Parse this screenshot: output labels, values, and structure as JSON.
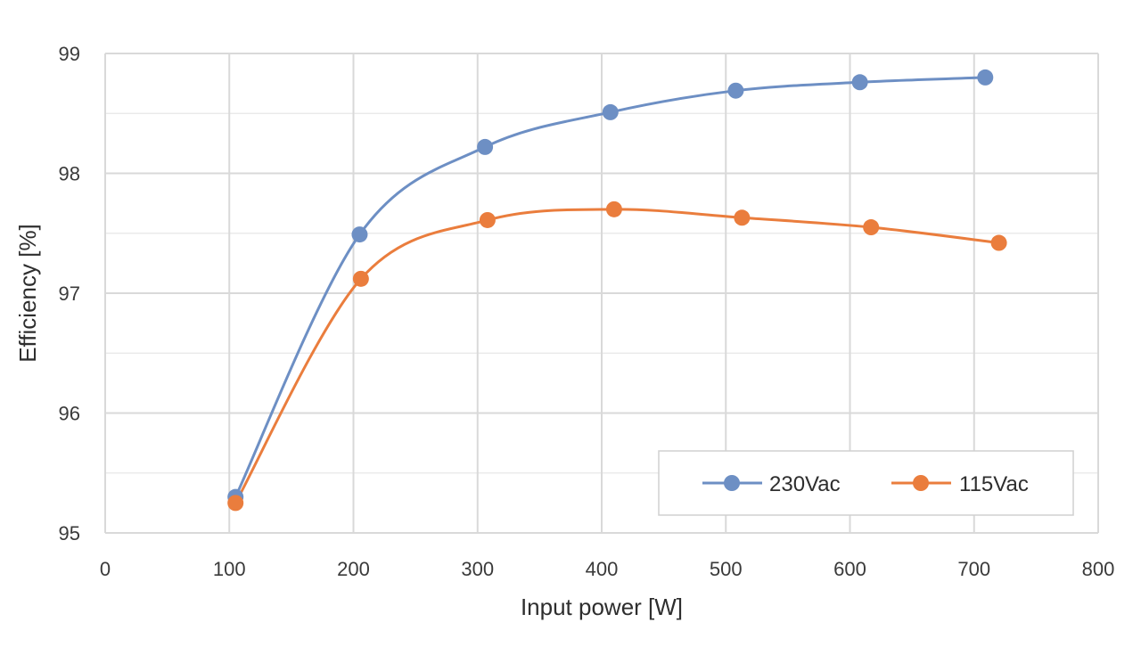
{
  "chart_data": {
    "type": "line",
    "title": "",
    "xlabel": "Input power [W]",
    "ylabel": "Efficiency [%]",
    "xlim": [
      0,
      800
    ],
    "ylim": [
      95,
      99
    ],
    "xticks": [
      0,
      100,
      200,
      300,
      400,
      500,
      600,
      700,
      800
    ],
    "yticks": [
      95,
      96,
      97,
      98,
      99
    ],
    "xtick_labels": [
      "0",
      "100",
      "200",
      "300",
      "400",
      "500",
      "600",
      "700",
      "800"
    ],
    "ytick_labels": [
      "95",
      "96",
      "97",
      "98",
      "99"
    ],
    "minor_y_gridlines": [
      95.5,
      96.5,
      97.5,
      98.5
    ],
    "grid": true,
    "legend_position": "bottom-right",
    "series": [
      {
        "name": "230Vac",
        "color": "#6d8fc4",
        "x": [
          105,
          205,
          306,
          407,
          508,
          608,
          709
        ],
        "y": [
          95.3,
          97.49,
          98.22,
          98.51,
          98.69,
          98.76,
          98.8
        ]
      },
      {
        "name": "115Vac",
        "color": "#ea7d3d",
        "x": [
          105,
          206,
          308,
          410,
          513,
          617,
          720
        ],
        "y": [
          95.25,
          97.12,
          97.61,
          97.7,
          97.63,
          97.55,
          97.42
        ]
      }
    ],
    "colors": {
      "grid": "#d9d9d9",
      "axis_text": "#3a3a3a"
    }
  }
}
